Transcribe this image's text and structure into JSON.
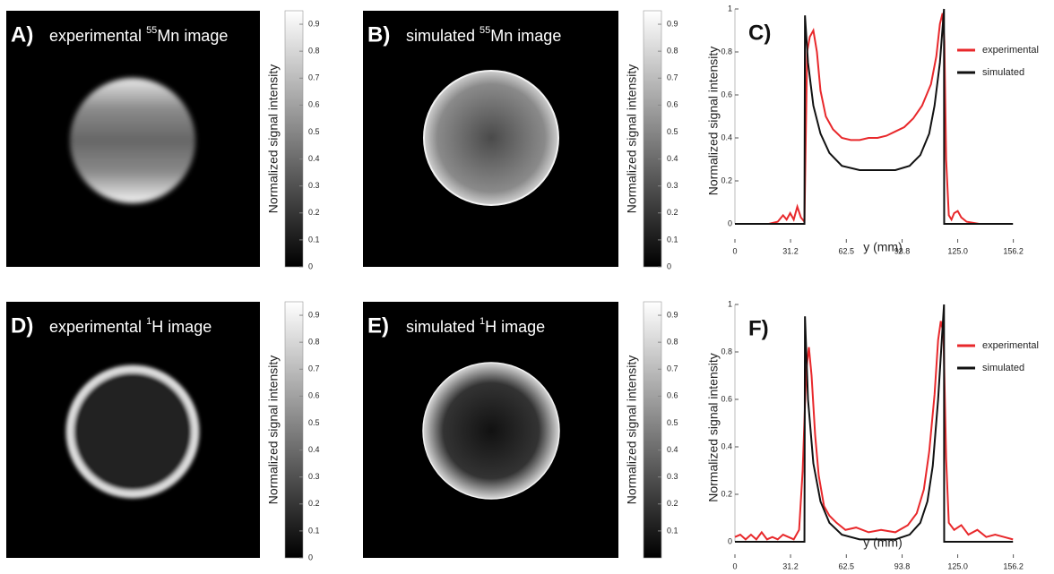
{
  "chart_data": [
    {
      "type": "image",
      "label": "A)",
      "title": [
        "experimental",
        "55",
        "Mn image"
      ],
      "colorbar": {
        "label": "Normalized signal intensity",
        "lim": [
          0,
          0.95
        ],
        "ticks": [
          0,
          0.1,
          0.2,
          0.3,
          0.4,
          0.5,
          0.6,
          0.7,
          0.8,
          0.9
        ]
      }
    },
    {
      "type": "image",
      "label": "B)",
      "title": [
        "simulated",
        "55",
        "Mn image"
      ],
      "colorbar": {
        "label": "Normalized signal intensity",
        "lim": [
          0,
          0.95
        ],
        "ticks": [
          0,
          0.1,
          0.2,
          0.3,
          0.4,
          0.5,
          0.6,
          0.7,
          0.8,
          0.9
        ]
      }
    },
    {
      "type": "line",
      "label": "C)",
      "xlabel": "y (mm)",
      "ylabel": "Normalized signal intensity",
      "xlim": [
        0,
        176
      ],
      "ylim": [
        0,
        1
      ],
      "xticks": [
        0,
        31.2,
        62.5,
        93.8,
        {
          "value": 125,
          "label": "125.0"
        },
        156.2
      ],
      "yticks": [
        0,
        0.2,
        0.4,
        0.6,
        0.8,
        1
      ],
      "legend": "upper right",
      "series": [
        {
          "name": "experimental",
          "color": "#e8282b",
          "x": [
            19,
            24,
            27,
            29,
            31,
            33,
            35,
            37,
            39,
            40.5,
            42,
            44,
            46,
            48,
            51,
            55,
            60,
            65,
            70,
            75,
            80,
            85,
            90,
            95,
            100,
            105,
            110,
            113,
            115,
            116.5,
            117.5,
            118.5,
            120,
            121.5,
            123,
            125,
            127,
            130,
            137
          ],
          "values": [
            0,
            0.01,
            0.04,
            0.02,
            0.05,
            0.02,
            0.08,
            0.03,
            0.01,
            0.8,
            0.87,
            0.9,
            0.8,
            0.62,
            0.5,
            0.44,
            0.4,
            0.39,
            0.39,
            0.4,
            0.4,
            0.41,
            0.43,
            0.45,
            0.49,
            0.55,
            0.65,
            0.78,
            0.93,
            0.98,
            0.85,
            0.3,
            0.04,
            0.02,
            0.05,
            0.06,
            0.03,
            0.01,
            0
          ]
        },
        {
          "name": "simulated",
          "color": "#111111",
          "x": [
            0,
            39,
            39.3,
            41,
            44,
            48,
            53,
            60,
            70,
            80,
            90,
            98,
            104,
            109,
            112,
            115,
            117.3,
            117.4,
            156
          ],
          "values": [
            0,
            0,
            0.97,
            0.75,
            0.55,
            0.42,
            0.33,
            0.27,
            0.25,
            0.25,
            0.25,
            0.27,
            0.32,
            0.42,
            0.55,
            0.75,
            1,
            0,
            0
          ]
        }
      ]
    },
    {
      "type": "image",
      "label": "D)",
      "title": [
        "experimental",
        "1",
        "H image"
      ],
      "colorbar": {
        "label": "Normalized signal intensity",
        "lim": [
          0,
          0.95
        ],
        "ticks": [
          0,
          0.1,
          0.2,
          0.3,
          0.4,
          0.5,
          0.6,
          0.7,
          0.8,
          0.9
        ]
      }
    },
    {
      "type": "image",
      "label": "E)",
      "title": [
        "simulated",
        "1",
        "H image"
      ],
      "colorbar": {
        "label": "Normalized signal intensity",
        "lim": [
          0,
          0.95
        ],
        "ticks": [
          0.1,
          0.2,
          0.3,
          0.4,
          0.5,
          0.6,
          0.7,
          0.8,
          0.9
        ]
      }
    },
    {
      "type": "line",
      "label": "F)",
      "xlabel": "y (mm)",
      "ylabel": "Normalized signal intensity",
      "xlim": [
        0,
        176
      ],
      "ylim": [
        0,
        1
      ],
      "xticks": [
        0,
        31.2,
        62.5,
        93.8,
        {
          "value": 125,
          "label": "125.0"
        },
        156.2
      ],
      "yticks": [
        0,
        0.2,
        0.4,
        0.6,
        0.8,
        1
      ],
      "legend": "upper right",
      "series": [
        {
          "name": "experimental",
          "color": "#e8282b",
          "x": [
            0,
            3,
            6,
            9,
            12,
            15,
            18,
            21,
            24,
            27,
            30,
            33,
            36,
            38,
            40,
            41.5,
            43,
            45,
            47,
            50,
            53,
            57,
            62,
            68,
            75,
            82,
            90,
            97,
            102,
            106,
            109,
            112,
            114,
            115.5,
            117,
            118.5,
            120,
            123,
            127,
            131,
            136,
            141,
            146,
            151,
            156
          ],
          "values": [
            0.02,
            0.03,
            0.01,
            0.03,
            0.01,
            0.04,
            0.01,
            0.02,
            0.01,
            0.03,
            0.02,
            0.01,
            0.05,
            0.3,
            0.72,
            0.82,
            0.7,
            0.45,
            0.28,
            0.15,
            0.11,
            0.08,
            0.05,
            0.06,
            0.04,
            0.05,
            0.04,
            0.07,
            0.12,
            0.22,
            0.38,
            0.62,
            0.85,
            0.93,
            0.88,
            0.35,
            0.08,
            0.05,
            0.07,
            0.03,
            0.05,
            0.02,
            0.03,
            0.02,
            0.01
          ]
        },
        {
          "name": "simulated",
          "color": "#111111",
          "x": [
            0,
            39,
            39.3,
            41,
            44,
            48,
            53,
            60,
            70,
            80,
            90,
            98,
            104,
            108,
            111,
            114,
            117.3,
            117.4,
            156
          ],
          "values": [
            0,
            0,
            0.95,
            0.6,
            0.33,
            0.17,
            0.08,
            0.03,
            0.01,
            0.01,
            0.01,
            0.03,
            0.08,
            0.17,
            0.32,
            0.6,
            1,
            0,
            0
          ]
        }
      ]
    }
  ]
}
